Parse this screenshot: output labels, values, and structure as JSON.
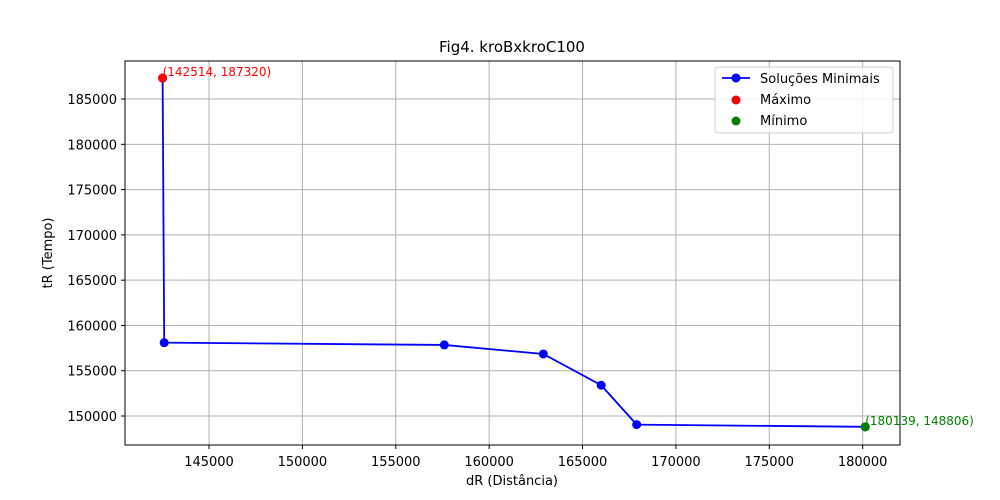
{
  "chart_data": {
    "type": "line",
    "title": "Fig4. kroBxkroC100",
    "xlabel": "dR (Distância)",
    "ylabel": "tR (Tempo)",
    "xlim": [
      140500,
      182000
    ],
    "ylim": [
      146800,
      189200
    ],
    "x_ticks": [
      145000,
      150000,
      155000,
      160000,
      165000,
      170000,
      175000,
      180000
    ],
    "y_ticks": [
      150000,
      155000,
      160000,
      165000,
      170000,
      175000,
      180000,
      185000
    ],
    "grid": true,
    "legend_position": "top-right",
    "series": [
      {
        "name": "Soluções Minimais",
        "color": "#0000ff",
        "points": [
          {
            "x": 142514,
            "y": 187320
          },
          {
            "x": 142600,
            "y": 158100
          },
          {
            "x": 157600,
            "y": 157850
          },
          {
            "x": 162900,
            "y": 156850
          },
          {
            "x": 166000,
            "y": 153400
          },
          {
            "x": 167900,
            "y": 149050
          },
          {
            "x": 180139,
            "y": 148806
          }
        ]
      }
    ],
    "maximum": {
      "name": "Máximo",
      "color": "#ff0000",
      "x": 142514,
      "y": 187320,
      "label": "(142514, 187320)"
    },
    "minimum": {
      "name": "Mínimo",
      "color": "#008000",
      "x": 180139,
      "y": 148806,
      "label": "(180139, 148806)"
    }
  }
}
